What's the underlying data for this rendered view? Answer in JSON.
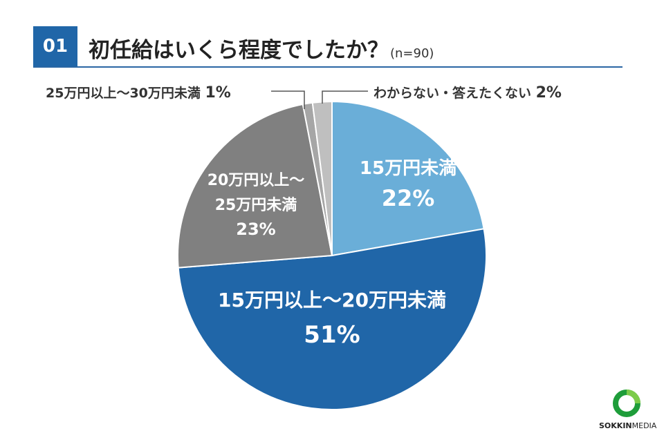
{
  "header": {
    "number": "01",
    "question": "初任給はいくら程度でしたか？",
    "sample": "(n=90)"
  },
  "brand": {
    "name_bold": "SOKKIN",
    "name_light": "MEDIA"
  },
  "colors": {
    "accent": "#2066a8",
    "slice_light_blue": "#6aaed8",
    "slice_dark_blue": "#2066a8",
    "slice_dark_gray": "#808080",
    "slice_mid_gray": "#a6a6a6",
    "slice_light_gray": "#bfbfbf"
  },
  "chart_data": {
    "type": "pie",
    "title": "初任給はいくら程度でしたか？",
    "sample_size": "n=90",
    "start": "12 o'clock",
    "direction": "clockwise",
    "slices": [
      {
        "label": "15万円未満",
        "label_lines": [
          "15万円未満"
        ],
        "value": 22,
        "display": "22%",
        "color": "#6aaed8",
        "label_style": "inside"
      },
      {
        "label": "15万円以上～20万円未満",
        "label_lines": [
          "15万円以上～20万円未満"
        ],
        "value": 51,
        "display": "51%",
        "color": "#2066a8",
        "label_style": "inside"
      },
      {
        "label": "20万円以上～25万円未満",
        "label_lines": [
          "20万円以上～",
          "25万円未満"
        ],
        "value": 23,
        "display": "23%",
        "color": "#808080",
        "label_style": "inside"
      },
      {
        "label": "25万円以上～30万円未満",
        "label_lines": [
          "25万円以上～30万円未満"
        ],
        "value": 1,
        "display": "1%",
        "color": "#a6a6a6",
        "label_style": "callout-left"
      },
      {
        "label": "わからない・答えたくない",
        "label_lines": [
          "わからない・答えたくない"
        ],
        "value": 2,
        "display": "2%",
        "color": "#bfbfbf",
        "label_style": "callout-right"
      }
    ]
  }
}
